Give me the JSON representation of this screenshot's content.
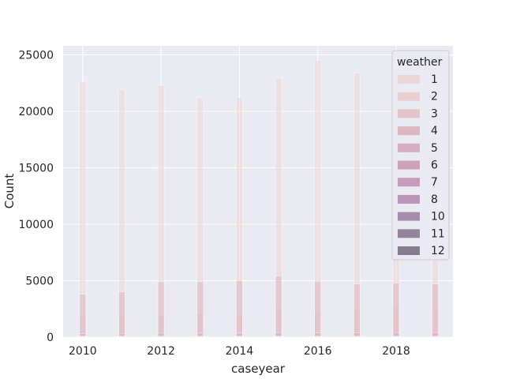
{
  "chart_data": {
    "type": "bar",
    "title": "",
    "xlabel": "caseyear",
    "ylabel": "Count",
    "x_ticks": [
      "2010",
      "2012",
      "2014",
      "2016",
      "2018"
    ],
    "y_ticks": [
      "0",
      "5000",
      "10000",
      "15000",
      "20000",
      "25000"
    ],
    "xlim": [
      2009.5,
      2019.45
    ],
    "ylim": [
      0,
      25800
    ],
    "categories": [
      "2010",
      "2011",
      "2012",
      "2013",
      "2014",
      "2015",
      "2016",
      "2017",
      "2018",
      "2019"
    ],
    "stacked": false,
    "series": [
      {
        "name": "1",
        "color": "#ebd6d6",
        "values": [
          22600,
          21900,
          22300,
          21200,
          21200,
          22900,
          24500,
          23400,
          23500,
          23400
        ]
      },
      {
        "name": "2",
        "color": "#e8cfd0",
        "values": [
          2000,
          2000,
          2000,
          2100,
          2050,
          2500,
          2200,
          2500,
          2700,
          2600
        ]
      },
      {
        "name": "3",
        "color": "#e3c4c8",
        "values": [
          150,
          150,
          150,
          150,
          150,
          150,
          150,
          150,
          150,
          150
        ]
      },
      {
        "name": "4",
        "color": "#dcb6c0",
        "values": [
          3800,
          4000,
          4900,
          4900,
          5000,
          5400,
          4950,
          4700,
          4800,
          4700
        ]
      },
      {
        "name": "5",
        "color": "#d6aec0",
        "values": [
          300,
          300,
          350,
          350,
          350,
          400,
          380,
          380,
          400,
          400
        ]
      },
      {
        "name": "6",
        "color": "#cda1b8",
        "values": [
          100,
          100,
          110,
          110,
          110,
          120,
          115,
          110,
          120,
          120
        ]
      },
      {
        "name": "7",
        "color": "#c69cbc",
        "values": [
          60,
          60,
          60,
          60,
          60,
          60,
          60,
          60,
          60,
          60
        ]
      },
      {
        "name": "8",
        "color": "#b996b8",
        "values": [
          40,
          40,
          40,
          40,
          40,
          40,
          40,
          40,
          40,
          40
        ]
      },
      {
        "name": "10",
        "color": "#a58ca8",
        "values": [
          30,
          30,
          30,
          30,
          30,
          30,
          30,
          30,
          30,
          30
        ]
      },
      {
        "name": "11",
        "color": "#95859b",
        "values": [
          20,
          20,
          20,
          20,
          20,
          20,
          20,
          20,
          20,
          20
        ]
      },
      {
        "name": "12",
        "color": "#867b8f",
        "values": [
          20,
          20,
          20,
          20,
          20,
          20,
          20,
          20,
          20,
          20
        ]
      }
    ],
    "grid": true,
    "legend": {
      "title": "weather",
      "position": "top-right"
    }
  }
}
